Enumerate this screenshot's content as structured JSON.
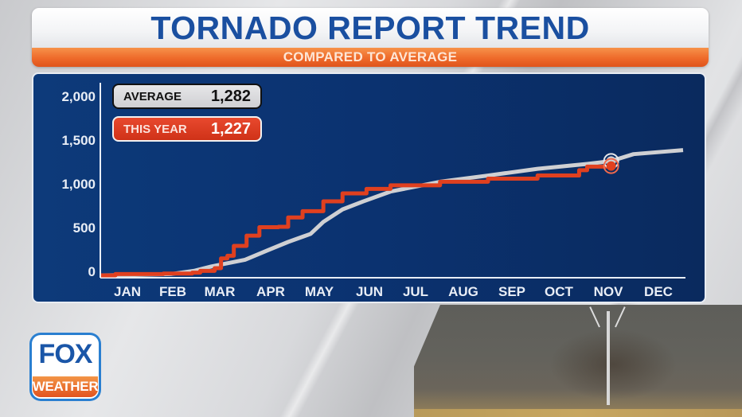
{
  "header": {
    "title": "TORNADO REPORT TREND",
    "subtitle": "COMPARED TO AVERAGE"
  },
  "legend": {
    "average": {
      "label": "AVERAGE",
      "value": "1,282",
      "color": "#cfd0d3"
    },
    "this_year": {
      "label": "THIS YEAR",
      "value": "1,227",
      "color": "#e0401f"
    }
  },
  "axis": {
    "y_ticks": [
      "2,000",
      "1,500",
      "1,000",
      "500",
      "0"
    ],
    "x_ticks": [
      "JAN",
      "FEB",
      "MAR",
      "APR",
      "MAY",
      "JUN",
      "JUL",
      "AUG",
      "SEP",
      "OCT",
      "NOV",
      "DEC"
    ]
  },
  "logo": {
    "line1": "FOX",
    "line2": "WEATHER"
  },
  "colors": {
    "title_blue": "#1a4fa0",
    "subtitle_bar_orange": "#ee6a2a",
    "panel_navy": "#0b3270",
    "average_line": "#cfd0d3",
    "this_year_line": "#e0401f"
  },
  "chart_data": {
    "type": "line",
    "title": "TORNADO REPORT TREND",
    "subtitle": "COMPARED TO AVERAGE",
    "xlabel": "",
    "ylabel": "",
    "ylim": [
      0,
      2000
    ],
    "yticks": [
      0,
      500,
      1000,
      1500,
      2000
    ],
    "categories": [
      "JAN",
      "FEB",
      "MAR",
      "APR",
      "MAY",
      "JUN",
      "JUL",
      "AUG",
      "SEP",
      "OCT",
      "NOV",
      "DEC"
    ],
    "grid": false,
    "legend_position": "top-left",
    "x_unit": "day_of_year",
    "series": [
      {
        "name": "AVERAGE",
        "end_label": "1,282",
        "color": "#cfd0d3",
        "x": [
          1,
          22,
          45,
          59,
          70,
          91,
          105,
          118,
          132,
          140,
          152,
          165,
          182,
          213,
          243,
          274,
          305,
          320,
          334,
          365
        ],
        "values": [
          0,
          5,
          15,
          50,
          100,
          175,
          280,
          375,
          465,
          600,
          740,
          830,
          940,
          1050,
          1120,
          1195,
          1250,
          1282,
          1360,
          1405
        ]
      },
      {
        "name": "THIS YEAR",
        "end_label": "1,227",
        "color": "#e0401f",
        "x": [
          1,
          10,
          40,
          58,
          63,
          72,
          76,
          80,
          84,
          92,
          100,
          112,
          118,
          127,
          140,
          152,
          167,
          182,
          213,
          243,
          274,
          300,
          305,
          320
        ],
        "values": [
          0,
          15,
          20,
          30,
          50,
          80,
          190,
          220,
          330,
          445,
          540,
          545,
          650,
          720,
          830,
          920,
          970,
          1010,
          1050,
          1085,
          1120,
          1180,
          1220,
          1227
        ]
      }
    ]
  }
}
